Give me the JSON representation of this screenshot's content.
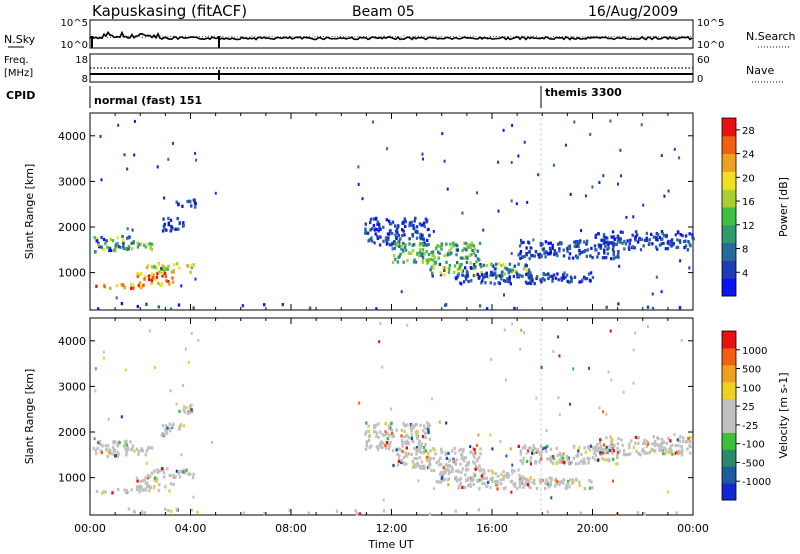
{
  "header": {
    "station": "Kapuskasing (fitACF)",
    "beam": "Beam 05",
    "date": "16/Aug/2009"
  },
  "noise_panel": {
    "left_label": "N.Sky",
    "right_label": "N.Search",
    "left_ticks": [
      "10^5",
      "10^0"
    ],
    "right_ticks": [
      "10^5",
      "10^0"
    ]
  },
  "freq_panel": {
    "left_label_1": "Freq.",
    "left_label_2": "[MHz]",
    "right_label": "Nave",
    "left_ticks": [
      "18",
      "8"
    ],
    "right_ticks": [
      "60",
      "0"
    ]
  },
  "cpid": {
    "label": "CPID",
    "modes": [
      {
        "name": "normal (fast) 151",
        "start": "00:00"
      },
      {
        "name": "themis 3300",
        "start": "18:00"
      }
    ]
  },
  "chart_data": [
    {
      "type": "heatmap",
      "name": "power",
      "ylabel": "Slant Range [km]",
      "xlabel": "Time UT",
      "x_ticks": [
        "00:00",
        "04:00",
        "08:00",
        "12:00",
        "16:00",
        "20:00",
        "00:00"
      ],
      "y_ticks": [
        1000,
        2000,
        3000,
        4000
      ],
      "ylim": [
        180,
        4500
      ],
      "xlim_hours": [
        0,
        24
      ],
      "colorbar": {
        "label": "Power [dB]",
        "ticks": [
          4,
          8,
          12,
          16,
          20,
          24,
          28
        ],
        "range": [
          0,
          30
        ],
        "colors": [
          "#0a14f0",
          "#1e3cb4",
          "#2a6a9a",
          "#2f9a6a",
          "#40c040",
          "#a8d030",
          "#f0e020",
          "#f0a020",
          "#f06010",
          "#e81010"
        ]
      }
    },
    {
      "type": "heatmap",
      "name": "velocity",
      "ylabel": "Slant Range [km]",
      "xlabel": "Time UT",
      "x_ticks": [
        "00:00",
        "04:00",
        "08:00",
        "12:00",
        "16:00",
        "20:00",
        "00:00"
      ],
      "y_ticks": [
        1000,
        2000,
        3000,
        4000
      ],
      "ylim": [
        180,
        4500
      ],
      "xlim_hours": [
        0,
        24
      ],
      "colorbar": {
        "label": "Velocity [m s-1]",
        "ticks": [
          1000,
          500,
          100,
          25,
          -25,
          -100,
          -500,
          -1000
        ],
        "colors": [
          "#1428d2",
          "#1e5aa0",
          "#2a8a6a",
          "#3cc03c",
          "#c0c0c0",
          "#c0c0c0",
          "#f0d020",
          "#f0a020",
          "#f06010",
          "#e81010"
        ]
      }
    }
  ]
}
